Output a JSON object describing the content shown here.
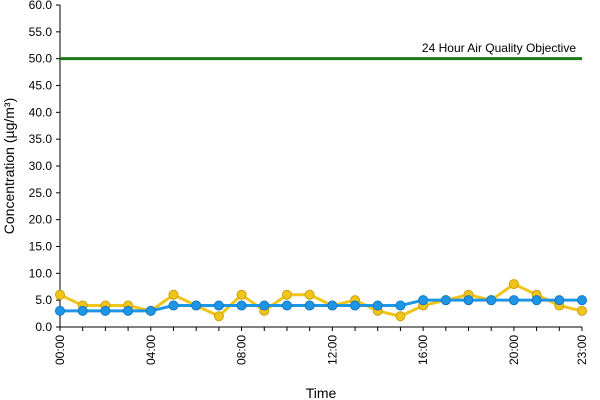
{
  "chart_data": {
    "type": "line",
    "title": "",
    "xlabel": "Time",
    "ylabel": "Concentration (µg/m³)",
    "x": [
      "00:00",
      "01:00",
      "02:00",
      "03:00",
      "04:00",
      "05:00",
      "06:00",
      "07:00",
      "08:00",
      "09:00",
      "10:00",
      "11:00",
      "12:00",
      "13:00",
      "14:00",
      "15:00",
      "16:00",
      "17:00",
      "18:00",
      "19:00",
      "20:00",
      "21:00",
      "22:00",
      "23:00"
    ],
    "x_tick_labels": [
      "00:00",
      "04:00",
      "08:00",
      "12:00",
      "16:00",
      "20:00",
      "23:00"
    ],
    "y_tick_labels": [
      "0.0",
      "5.0",
      "10.0",
      "15.0",
      "20.0",
      "25.0",
      "30.0",
      "35.0",
      "40.0",
      "45.0",
      "50.0",
      "55.0",
      "60.0"
    ],
    "ylim": [
      0,
      60
    ],
    "grid": false,
    "series": [
      {
        "color": "#f0c419",
        "values": [
          6,
          4,
          4,
          4,
          3,
          6,
          4,
          2,
          6,
          3,
          6,
          6,
          4,
          5,
          3,
          2,
          4,
          5,
          6,
          5,
          8,
          6,
          4,
          3
        ]
      },
      {
        "color": "#1e96e8",
        "values": [
          3,
          3,
          3,
          3,
          3,
          4,
          4,
          4,
          4,
          4,
          4,
          4,
          4,
          4,
          4,
          4,
          5,
          5,
          5,
          5,
          5,
          5,
          5,
          5
        ]
      }
    ],
    "reference_line": {
      "label": "24 Hour Air Quality Objective",
      "value": 50,
      "color": "#1a7a1a"
    }
  }
}
